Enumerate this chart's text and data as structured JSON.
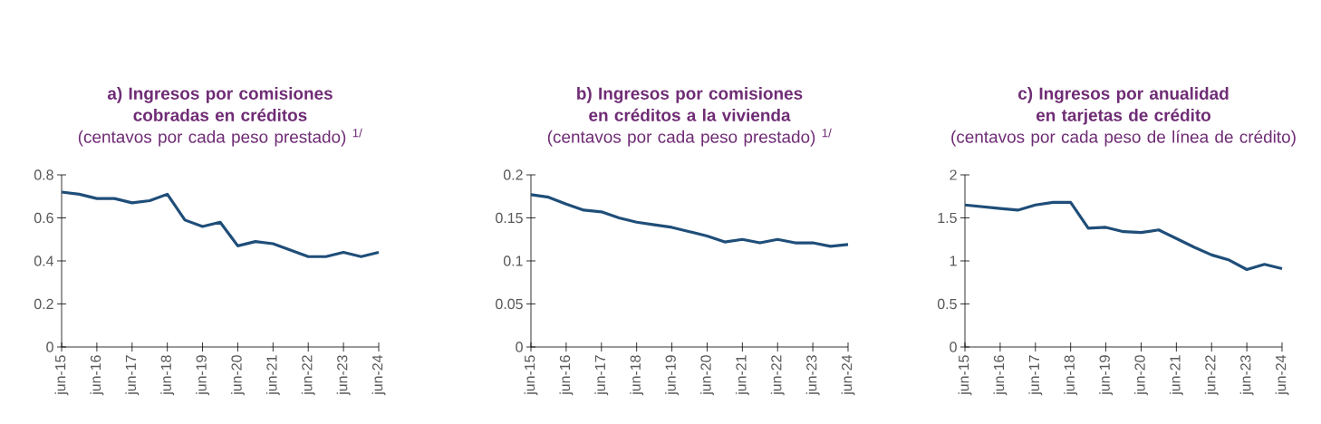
{
  "chart_data": [
    {
      "type": "line",
      "title": "a) Ingresos por comisiones cobradas en créditos",
      "subtitle": "(centavos por cada peso prestado) $^{1/}$",
      "categories": [
        "jun-15",
        null,
        "jun-16",
        null,
        "jun-17",
        null,
        "jun-18",
        null,
        "jun-19",
        null,
        "jun-20",
        null,
        "jun-21",
        null,
        "jun-22",
        null,
        "jun-23",
        null,
        "jun-24"
      ],
      "values": [
        0.72,
        0.71,
        0.69,
        0.69,
        0.67,
        0.68,
        0.71,
        0.59,
        0.56,
        0.58,
        0.47,
        0.49,
        0.48,
        0.45,
        0.42,
        0.42,
        0.44,
        0.42,
        0.44
      ],
      "color": "#1f4e79",
      "ylim": [
        0,
        0.8
      ],
      "yticks": [
        0,
        0.2,
        0.4,
        0.6,
        0.8
      ]
    },
    {
      "type": "line",
      "title": "b) Ingresos por comisiones en créditos a la vivienda",
      "subtitle": "(centavos por cada peso prestado) $^{1/}$",
      "categories": [
        "jun-15",
        null,
        "jun-16",
        null,
        "jun-17",
        null,
        "jun-18",
        null,
        "jun-19",
        null,
        "jun-20",
        null,
        "jun-21",
        null,
        "jun-22",
        null,
        "jun-23",
        null,
        "jun-24"
      ],
      "values": [
        0.177,
        0.174,
        0.166,
        0.159,
        0.157,
        0.15,
        0.145,
        0.142,
        0.139,
        0.134,
        0.129,
        0.122,
        0.125,
        0.121,
        0.125,
        0.121,
        0.121,
        0.117,
        0.119
      ],
      "color": "#1f4e79",
      "ylim": [
        0,
        0.2
      ],
      "yticks": [
        0,
        0.05,
        0.1,
        0.15,
        0.2
      ]
    },
    {
      "type": "line",
      "title": "c) Ingresos por anualidad en tarjetas de crédito",
      "subtitle": "(centavos por cada peso de línea de crédito)",
      "categories": [
        "jun-15",
        null,
        "jun-16",
        null,
        "jun-17",
        null,
        "jun-18",
        null,
        "jun-19",
        null,
        "jun-20",
        null,
        "jun-21",
        null,
        "jun-22",
        null,
        "jun-23",
        null,
        "jun-24"
      ],
      "values": [
        1.65,
        1.63,
        1.61,
        1.59,
        1.65,
        1.68,
        1.68,
        1.38,
        1.39,
        1.34,
        1.33,
        1.36,
        1.26,
        1.16,
        1.07,
        1.01,
        0.9,
        0.96,
        0.91
      ],
      "color": "#1f4e79",
      "ylim": [
        0,
        2
      ],
      "yticks": [
        0,
        0.5,
        1,
        1.5,
        2
      ]
    }
  ]
}
